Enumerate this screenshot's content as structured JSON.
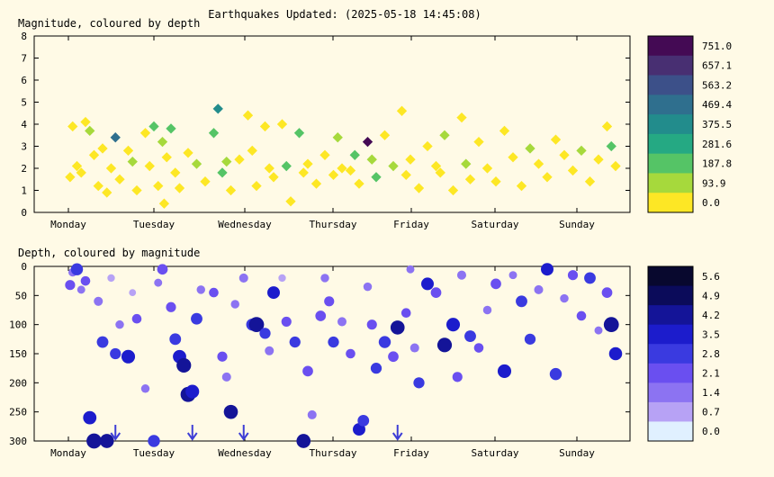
{
  "title": "Earthquakes Updated: (2025-05-18 14:45:08)",
  "colors": {
    "background": "#fffae6",
    "frame": "#000000",
    "arrow": "#3d3dd6"
  },
  "chart_data": [
    {
      "type": "scatter",
      "title": "Magnitude, coloured by depth",
      "y_label": "",
      "ylim": [
        0,
        8
      ],
      "y_ticks": [
        "0",
        "1",
        "2",
        "3",
        "4",
        "5",
        "6",
        "7",
        "8"
      ],
      "x_labels": [
        "Monday",
        "Tuesday",
        "Wednesday",
        "Thursday",
        "Friday",
        "Saturday",
        "Sunday"
      ],
      "grid": false,
      "colorbar": {
        "labels": [
          "751.0",
          "657.1",
          "563.2",
          "469.4",
          "375.5",
          "281.6",
          "187.8",
          "93.9",
          "0.0"
        ],
        "colors": [
          "#440a54",
          "#482f72",
          "#3c5089",
          "#2f6f8e",
          "#228c8c",
          "#25a983",
          "#55c466",
          "#a6d93c",
          "#fde725"
        ]
      },
      "series": [
        {
          "points": [
            [
              0.02,
              1.6,
              20
            ],
            [
              0.05,
              3.9,
              10
            ],
            [
              0.1,
              2.1,
              8
            ],
            [
              0.15,
              1.8,
              5
            ],
            [
              0.2,
              4.1,
              30
            ],
            [
              0.25,
              3.7,
              150
            ],
            [
              0.3,
              2.6,
              10
            ],
            [
              0.35,
              1.2,
              5
            ],
            [
              0.4,
              2.9,
              60
            ],
            [
              0.45,
              0.9,
              5
            ],
            [
              0.5,
              2.0,
              10
            ],
            [
              0.55,
              3.4,
              420
            ],
            [
              0.6,
              1.5,
              10
            ],
            [
              0.7,
              2.8,
              15
            ],
            [
              0.75,
              2.3,
              120
            ],
            [
              0.8,
              1.0,
              10
            ],
            [
              0.9,
              3.6,
              20
            ],
            [
              0.95,
              2.1,
              50
            ],
            [
              1.0,
              3.9,
              200
            ],
            [
              1.05,
              1.2,
              10
            ],
            [
              1.1,
              3.2,
              150
            ],
            [
              1.12,
              0.4,
              5
            ],
            [
              1.15,
              2.5,
              30
            ],
            [
              1.2,
              3.8,
              250
            ],
            [
              1.25,
              1.8,
              40
            ],
            [
              1.3,
              1.1,
              10
            ],
            [
              1.4,
              2.7,
              10
            ],
            [
              1.5,
              2.2,
              100
            ],
            [
              1.6,
              1.4,
              5
            ],
            [
              1.7,
              3.6,
              230
            ],
            [
              1.75,
              4.7,
              400
            ],
            [
              1.8,
              1.8,
              200
            ],
            [
              1.85,
              2.3,
              120
            ],
            [
              1.9,
              1.0,
              5
            ],
            [
              2.0,
              2.4,
              10
            ],
            [
              2.1,
              4.4,
              60
            ],
            [
              2.15,
              2.8,
              10
            ],
            [
              2.2,
              1.2,
              5
            ],
            [
              2.3,
              3.9,
              80
            ],
            [
              2.35,
              2.0,
              20
            ],
            [
              2.4,
              1.6,
              10
            ],
            [
              2.5,
              4.0,
              30
            ],
            [
              2.55,
              2.1,
              180
            ],
            [
              2.6,
              0.5,
              10
            ],
            [
              2.7,
              3.6,
              170
            ],
            [
              2.75,
              1.8,
              80
            ],
            [
              2.8,
              2.2,
              10
            ],
            [
              2.9,
              1.3,
              10
            ],
            [
              3.0,
              2.6,
              10
            ],
            [
              3.1,
              1.7,
              5
            ],
            [
              3.15,
              3.4,
              150
            ],
            [
              3.2,
              2.0,
              10
            ],
            [
              3.3,
              1.9,
              40
            ],
            [
              3.35,
              2.6,
              230
            ],
            [
              3.4,
              1.3,
              10
            ],
            [
              3.5,
              3.2,
              751
            ],
            [
              3.55,
              2.4,
              150
            ],
            [
              3.6,
              1.6,
              200
            ],
            [
              3.7,
              3.5,
              20
            ],
            [
              3.8,
              2.1,
              100
            ],
            [
              3.9,
              4.6,
              60
            ],
            [
              3.95,
              1.7,
              10
            ],
            [
              4.0,
              2.4,
              20
            ],
            [
              4.1,
              1.1,
              5
            ],
            [
              4.2,
              3.0,
              10
            ],
            [
              4.3,
              2.1,
              10
            ],
            [
              4.35,
              1.8,
              80
            ],
            [
              4.4,
              3.5,
              150
            ],
            [
              4.5,
              1.0,
              10
            ],
            [
              4.6,
              4.3,
              60
            ],
            [
              4.65,
              2.2,
              120
            ],
            [
              4.7,
              1.5,
              10
            ],
            [
              4.8,
              3.2,
              20
            ],
            [
              4.9,
              2.0,
              10
            ],
            [
              5.0,
              1.4,
              5
            ],
            [
              5.1,
              3.7,
              30
            ],
            [
              5.2,
              2.5,
              60
            ],
            [
              5.3,
              1.2,
              10
            ],
            [
              5.4,
              2.9,
              100
            ],
            [
              5.5,
              2.2,
              10
            ],
            [
              5.6,
              1.6,
              5
            ],
            [
              5.7,
              3.3,
              20
            ],
            [
              5.8,
              2.6,
              10
            ],
            [
              5.9,
              1.9,
              10
            ],
            [
              6.0,
              2.8,
              100
            ],
            [
              6.1,
              1.4,
              5
            ],
            [
              6.2,
              2.4,
              20
            ],
            [
              6.3,
              3.9,
              60
            ],
            [
              6.35,
              3.0,
              200
            ],
            [
              6.4,
              2.1,
              10
            ]
          ]
        }
      ]
    },
    {
      "type": "scatter",
      "title": "Depth, coloured by magnitude",
      "y_label": "",
      "ylim": [
        300,
        0
      ],
      "y_ticks": [
        "0",
        "50",
        "100",
        "150",
        "200",
        "250",
        "300"
      ],
      "x_labels": [
        "Monday",
        "Tuesday",
        "Wednesday",
        "Thursday",
        "Friday",
        "Saturday",
        "Sunday"
      ],
      "grid": false,
      "colorbar": {
        "labels": [
          "5.6",
          "4.9",
          "4.2",
          "3.5",
          "2.8",
          "2.1",
          "1.4",
          "0.7",
          "0.0"
        ],
        "colors": [
          "#08082e",
          "#0b0b5a",
          "#141498",
          "#1c1ccc",
          "#3a3ae0",
          "#6a4ff0",
          "#8c73f2",
          "#b7a2f5",
          "#e0f0ff"
        ]
      },
      "arrows_x": [
        0.55,
        1.45,
        2.05,
        3.85
      ],
      "series": [
        {
          "points": [
            [
              0.02,
              32,
              2.2
            ],
            [
              0.05,
              10,
              1.6
            ],
            [
              0.1,
              5,
              3.0
            ],
            [
              0.15,
              40,
              1.4
            ],
            [
              0.2,
              25,
              2.0
            ],
            [
              0.25,
              260,
              3.5
            ],
            [
              0.3,
              300,
              4.2
            ],
            [
              0.35,
              60,
              1.8
            ],
            [
              0.4,
              130,
              2.8
            ],
            [
              0.45,
              300,
              3.8
            ],
            [
              0.5,
              20,
              1.2
            ],
            [
              0.55,
              150,
              2.6
            ],
            [
              0.6,
              100,
              1.6
            ],
            [
              0.7,
              155,
              3.6
            ],
            [
              0.75,
              45,
              1.0
            ],
            [
              0.8,
              90,
              2.0
            ],
            [
              0.9,
              210,
              1.6
            ],
            [
              1.0,
              300,
              3.0
            ],
            [
              1.05,
              28,
              1.4
            ],
            [
              1.1,
              5,
              2.4
            ],
            [
              1.2,
              70,
              2.2
            ],
            [
              1.25,
              125,
              2.8
            ],
            [
              1.3,
              155,
              3.5
            ],
            [
              1.35,
              170,
              4.0
            ],
            [
              1.4,
              220,
              4.2
            ],
            [
              1.45,
              215,
              3.6
            ],
            [
              1.5,
              90,
              2.8
            ],
            [
              1.55,
              40,
              1.6
            ],
            [
              1.7,
              45,
              2.0
            ],
            [
              1.8,
              155,
              2.2
            ],
            [
              1.85,
              190,
              1.8
            ],
            [
              1.9,
              250,
              3.8
            ],
            [
              1.95,
              65,
              1.6
            ],
            [
              2.05,
              20,
              1.8
            ],
            [
              2.15,
              100,
              3.0
            ],
            [
              2.2,
              100,
              4.2
            ],
            [
              2.3,
              115,
              2.6
            ],
            [
              2.35,
              145,
              1.8
            ],
            [
              2.4,
              45,
              3.2
            ],
            [
              2.5,
              20,
              1.2
            ],
            [
              2.55,
              95,
              2.2
            ],
            [
              2.65,
              130,
              2.6
            ],
            [
              2.75,
              300,
              3.8
            ],
            [
              2.8,
              180,
              2.4
            ],
            [
              2.85,
              255,
              1.8
            ],
            [
              2.95,
              85,
              2.4
            ],
            [
              3.0,
              20,
              1.6
            ],
            [
              3.05,
              60,
              2.2
            ],
            [
              3.1,
              130,
              2.6
            ],
            [
              3.2,
              95,
              1.8
            ],
            [
              3.3,
              150,
              2.0
            ],
            [
              3.4,
              280,
              3.2
            ],
            [
              3.45,
              265,
              2.8
            ],
            [
              3.5,
              35,
              1.6
            ],
            [
              3.55,
              100,
              2.2
            ],
            [
              3.6,
              175,
              2.6
            ],
            [
              3.7,
              130,
              3.0
            ],
            [
              3.8,
              155,
              2.4
            ],
            [
              3.85,
              105,
              3.8
            ],
            [
              3.95,
              80,
              2.0
            ],
            [
              4.0,
              5,
              1.4
            ],
            [
              4.05,
              140,
              1.8
            ],
            [
              4.1,
              200,
              2.6
            ],
            [
              4.2,
              30,
              3.2
            ],
            [
              4.3,
              45,
              2.4
            ],
            [
              4.4,
              135,
              4.0
            ],
            [
              4.5,
              100,
              3.6
            ],
            [
              4.55,
              190,
              2.2
            ],
            [
              4.6,
              15,
              1.8
            ],
            [
              4.7,
              120,
              2.8
            ],
            [
              4.8,
              140,
              2.0
            ],
            [
              4.9,
              75,
              1.6
            ],
            [
              5.0,
              30,
              2.4
            ],
            [
              5.1,
              180,
              3.6
            ],
            [
              5.2,
              15,
              1.4
            ],
            [
              5.3,
              60,
              2.8
            ],
            [
              5.4,
              125,
              2.6
            ],
            [
              5.5,
              40,
              1.8
            ],
            [
              5.6,
              5,
              3.2
            ],
            [
              5.7,
              185,
              3.0
            ],
            [
              5.8,
              55,
              1.6
            ],
            [
              5.9,
              15,
              2.2
            ],
            [
              6.0,
              85,
              2.0
            ],
            [
              6.1,
              20,
              2.8
            ],
            [
              6.2,
              110,
              1.4
            ],
            [
              6.3,
              45,
              2.4
            ],
            [
              6.35,
              100,
              4.2
            ],
            [
              6.4,
              150,
              3.4
            ]
          ]
        }
      ]
    }
  ]
}
